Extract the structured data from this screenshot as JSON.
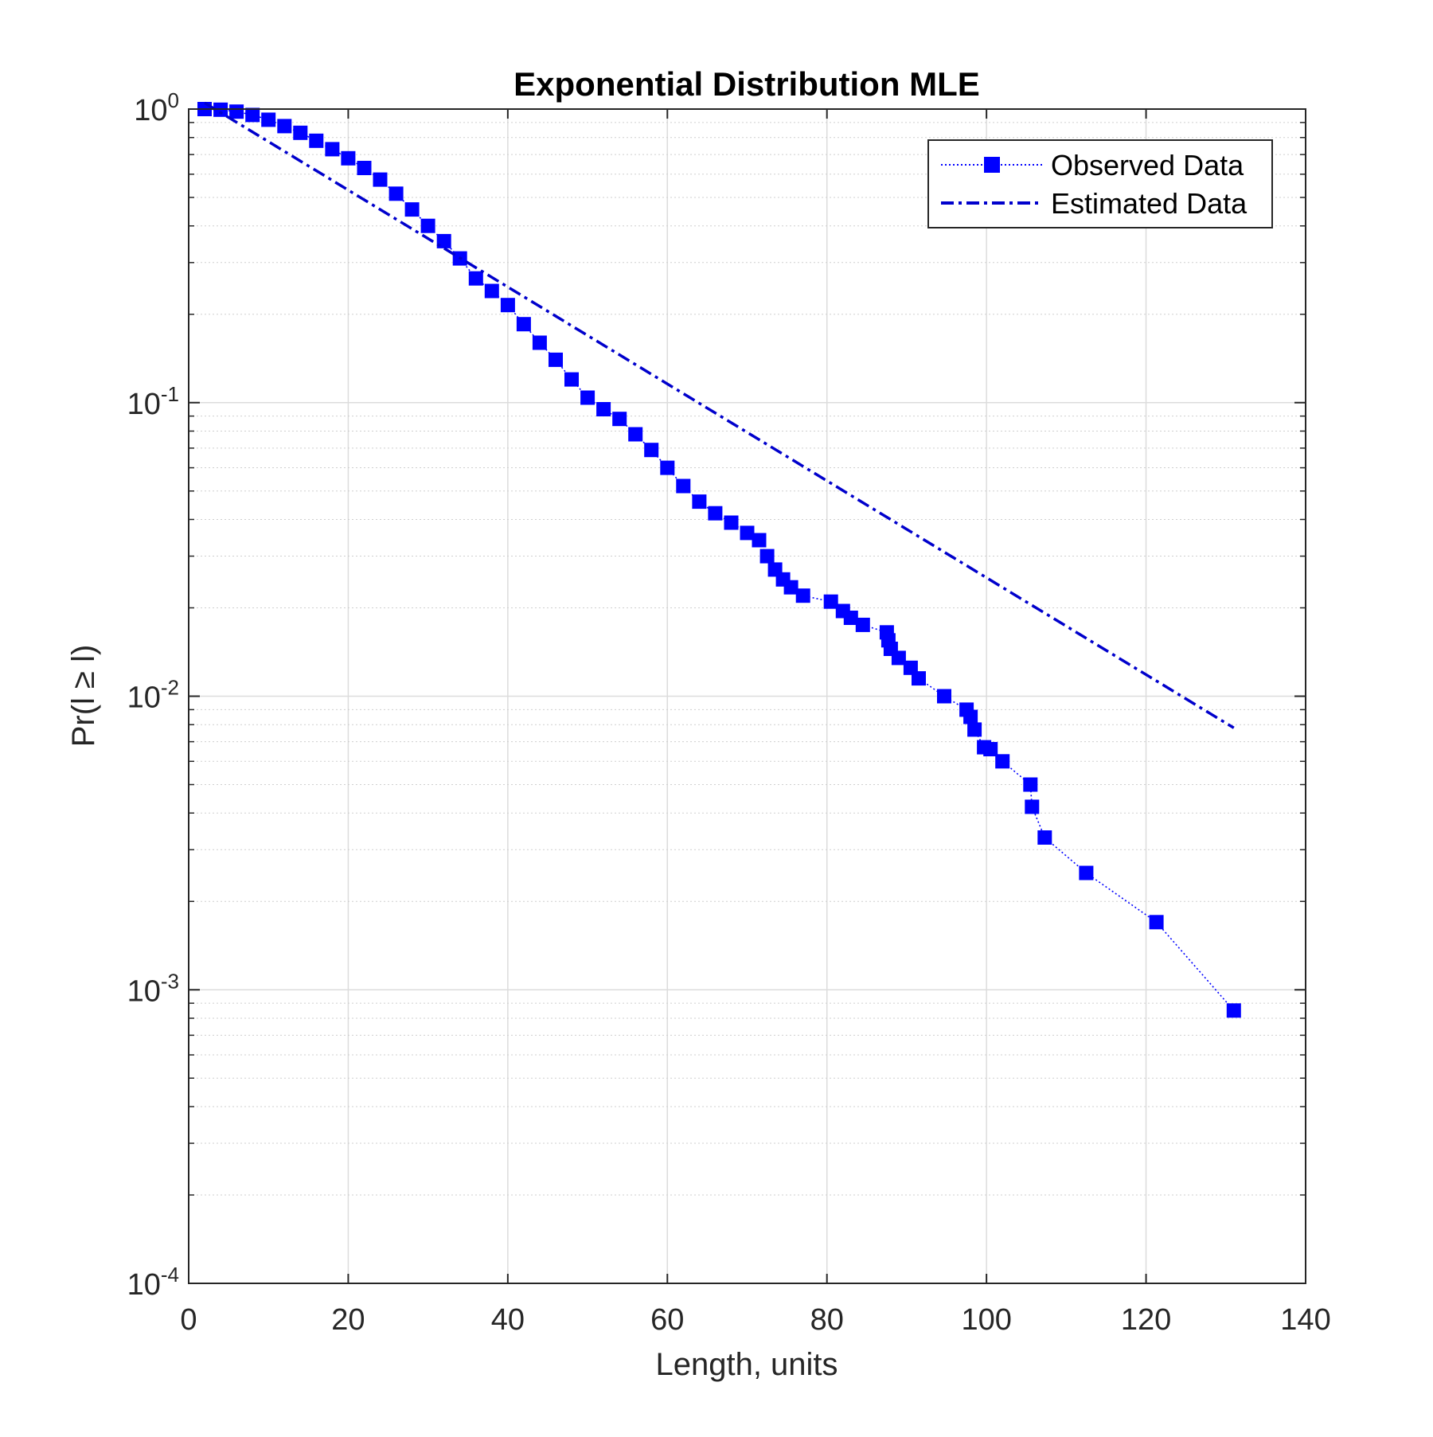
{
  "chart_data": {
    "type": "line",
    "title": "Exponential Distribution MLE",
    "xlabel": "Length, units",
    "ylabel": "Pr(l ≥ l)",
    "xlim": [
      0,
      140
    ],
    "ylim": [
      0.0001,
      1
    ],
    "yscale": "log",
    "grid": true,
    "legend_position": "top-right",
    "x_ticks": [
      "0",
      "20",
      "40",
      "60",
      "80",
      "100",
      "120",
      "140"
    ],
    "y_ticks": [
      {
        "base": "10",
        "exp": "-4",
        "value": 0.0001
      },
      {
        "base": "10",
        "exp": "-3",
        "value": 0.001
      },
      {
        "base": "10",
        "exp": "-2",
        "value": 0.01
      },
      {
        "base": "10",
        "exp": "-1",
        "value": 0.1
      },
      {
        "base": "10",
        "exp": "0",
        "value": 1
      }
    ],
    "series": [
      {
        "name": "Observed Data",
        "style": "dotted-square-markers",
        "color": "#0000ff",
        "x": [
          2,
          4,
          6,
          8,
          10,
          12,
          14,
          16,
          18,
          20,
          22,
          24,
          26,
          28,
          30,
          32,
          34,
          36,
          38,
          40,
          42,
          44,
          46,
          48,
          50,
          52,
          54,
          56,
          58,
          60,
          62,
          64,
          66,
          68,
          70,
          71.5,
          72.5,
          73.5,
          74.5,
          75.5,
          77,
          80.5,
          82,
          83,
          84.5,
          87.5,
          87.7,
          88,
          89,
          90.5,
          91.5,
          94.7,
          97.5,
          98,
          98.5,
          99.7,
          100.5,
          102,
          105.5,
          105.7,
          107.3,
          112.5,
          121.3,
          131
        ],
        "y": [
          1.0,
          0.995,
          0.98,
          0.955,
          0.92,
          0.875,
          0.83,
          0.78,
          0.73,
          0.68,
          0.63,
          0.575,
          0.515,
          0.455,
          0.4,
          0.355,
          0.31,
          0.265,
          0.24,
          0.215,
          0.185,
          0.16,
          0.14,
          0.12,
          0.104,
          0.095,
          0.088,
          0.078,
          0.069,
          0.06,
          0.052,
          0.046,
          0.042,
          0.039,
          0.036,
          0.034,
          0.03,
          0.027,
          0.025,
          0.0235,
          0.022,
          0.021,
          0.0195,
          0.0185,
          0.0175,
          0.0165,
          0.0155,
          0.0145,
          0.0135,
          0.0125,
          0.0115,
          0.01,
          0.009,
          0.0085,
          0.0077,
          0.0067,
          0.0066,
          0.006,
          0.005,
          0.0042,
          0.0033,
          0.0025,
          0.0017,
          0.00085
        ]
      },
      {
        "name": "Estimated Data",
        "style": "dash-dot",
        "color": "#0000cc",
        "x": [
          2,
          131
        ],
        "y": [
          1.05,
          0.0078
        ]
      }
    ]
  }
}
